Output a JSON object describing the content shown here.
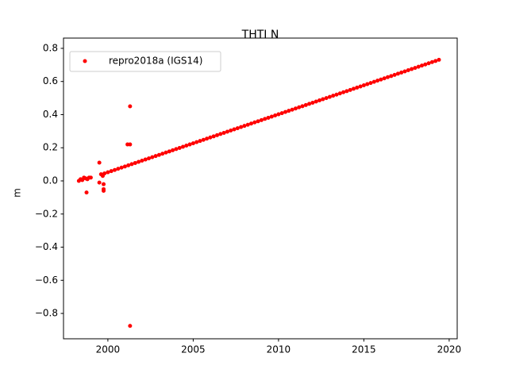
{
  "chart_data": {
    "type": "scatter",
    "title": "THTI N",
    "y_label": "m",
    "xlim": [
      1997.4,
      2020.47
    ],
    "ylim": [
      -0.953,
      0.862
    ],
    "xticks": [
      2000,
      2005,
      2010,
      2015,
      2020
    ],
    "yticks": [
      {
        "value": -0.8,
        "label": "−0.8"
      },
      {
        "value": -0.6,
        "label": "−0.6"
      },
      {
        "value": -0.4,
        "label": "−0.4"
      },
      {
        "value": -0.2,
        "label": "−0.2"
      },
      {
        "value": 0,
        "label": "0.0"
      },
      0.2,
      0.4,
      0.6,
      0.8
    ],
    "legend": "upper left",
    "series": [
      {
        "name": "repro2018a (IGS14)",
        "color": "#ff0000",
        "x": [
          1998.3,
          1998.4,
          1998.5,
          1998.6,
          1998.7,
          1998.75,
          1998.8,
          1998.9,
          1999.0,
          1999.5,
          1999.5,
          1999.6,
          1999.7,
          1999.75,
          1999.75,
          1999.75,
          2001.15,
          2001.3,
          2001.3,
          2001.3,
          1999.8,
          2000,
          2000.2,
          2000.4,
          2000.6,
          2000.8,
          2001,
          2001.2,
          2001.4,
          2001.6,
          2001.8,
          2002,
          2002.2,
          2002.4,
          2002.6,
          2002.8,
          2003,
          2003.2,
          2003.4,
          2003.6,
          2003.8,
          2004,
          2004.2,
          2004.4,
          2004.6,
          2004.8,
          2005,
          2005.2,
          2005.4,
          2005.6,
          2005.8,
          2006,
          2006.2,
          2006.4,
          2006.6,
          2006.8,
          2007,
          2007.2,
          2007.4,
          2007.6,
          2007.8,
          2008,
          2008.2,
          2008.4,
          2008.6,
          2008.8,
          2009,
          2009.2,
          2009.4,
          2009.6,
          2009.8,
          2010,
          2010.2,
          2010.4,
          2010.6,
          2010.8,
          2011,
          2011.2,
          2011.4,
          2011.6,
          2011.8,
          2012,
          2012.2,
          2012.4,
          2012.6,
          2012.8,
          2013,
          2013.2,
          2013.4,
          2013.6,
          2013.8,
          2014,
          2014.2,
          2014.4,
          2014.6,
          2014.8,
          2015,
          2015.2,
          2015.4,
          2015.6,
          2015.8,
          2016,
          2016.2,
          2016.4,
          2016.6,
          2016.8,
          2017,
          2017.2,
          2017.4,
          2017.6,
          2017.8,
          2018,
          2018.2,
          2018.4,
          2018.6,
          2018.8,
          2019,
          2019.2,
          2019.4
        ],
        "values": [
          0.0,
          0.01,
          0.005,
          0.02,
          0.015,
          -0.07,
          0.01,
          0.02,
          0.02,
          0.11,
          -0.01,
          0.04,
          0.03,
          -0.02,
          -0.05,
          -0.06,
          0.22,
          0.22,
          0.45,
          -0.875,
          0.045,
          0.052,
          0.059,
          0.066,
          0.073,
          0.08,
          0.087,
          0.094,
          0.101,
          0.108,
          0.115,
          0.122,
          0.129,
          0.136,
          0.143,
          0.15,
          0.157,
          0.164,
          0.171,
          0.178,
          0.185,
          0.192,
          0.199,
          0.206,
          0.213,
          0.22,
          0.227,
          0.234,
          0.241,
          0.248,
          0.255,
          0.262,
          0.269,
          0.276,
          0.283,
          0.29,
          0.297,
          0.304,
          0.311,
          0.318,
          0.325,
          0.332,
          0.339,
          0.346,
          0.353,
          0.36,
          0.367,
          0.374,
          0.381,
          0.388,
          0.395,
          0.402,
          0.409,
          0.416,
          0.423,
          0.43,
          0.437,
          0.444,
          0.451,
          0.458,
          0.465,
          0.472,
          0.479,
          0.486,
          0.493,
          0.5,
          0.507,
          0.514,
          0.521,
          0.528,
          0.535,
          0.542,
          0.549,
          0.556,
          0.563,
          0.57,
          0.577,
          0.584,
          0.591,
          0.598,
          0.605,
          0.612,
          0.619,
          0.626,
          0.633,
          0.64,
          0.647,
          0.654,
          0.661,
          0.668,
          0.675,
          0.682,
          0.689,
          0.696,
          0.703,
          0.71,
          0.717,
          0.724,
          0.731
        ]
      }
    ]
  }
}
